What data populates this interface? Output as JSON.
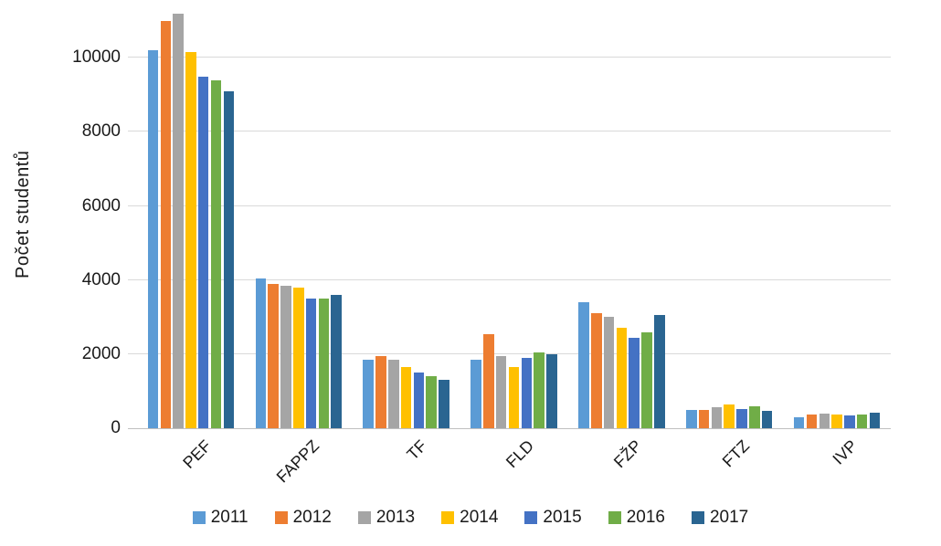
{
  "chart_data": {
    "type": "bar",
    "title": "",
    "xlabel": "",
    "ylabel": "Počet studentů",
    "categories": [
      "PEF",
      "FAPPZ",
      "TF",
      "FLD",
      "FŽP",
      "FTZ",
      "IVP"
    ],
    "series": [
      {
        "name": "2011",
        "color": "#5B9BD5",
        "values": [
          10200,
          4050,
          1850,
          1850,
          3400,
          500,
          300
        ]
      },
      {
        "name": "2012",
        "color": "#ED7D31",
        "values": [
          11000,
          3900,
          1950,
          2550,
          3100,
          500,
          370
        ]
      },
      {
        "name": "2013",
        "color": "#A5A5A5",
        "values": [
          11200,
          3850,
          1850,
          1950,
          3000,
          570,
          400
        ]
      },
      {
        "name": "2014",
        "color": "#FFC000",
        "values": [
          10150,
          3800,
          1650,
          1650,
          2700,
          630,
          380
        ]
      },
      {
        "name": "2015",
        "color": "#4472C4",
        "values": [
          9500,
          3500,
          1500,
          1900,
          2450,
          530,
          350
        ]
      },
      {
        "name": "2016",
        "color": "#70AD47",
        "values": [
          9400,
          3500,
          1400,
          2050,
          2600,
          600,
          370
        ]
      },
      {
        "name": "2017",
        "color": "#2A6591",
        "values": [
          9100,
          3600,
          1300,
          2000,
          3050,
          480,
          420
        ]
      }
    ],
    "y_ticks": [
      0,
      2000,
      4000,
      6000,
      8000,
      10000
    ],
    "ylim": [
      0,
      11560
    ],
    "grid": "horizontal",
    "legend_position": "bottom",
    "gridline_color": "#D9D9D9",
    "axis_line_color": "#BFBFBF"
  }
}
